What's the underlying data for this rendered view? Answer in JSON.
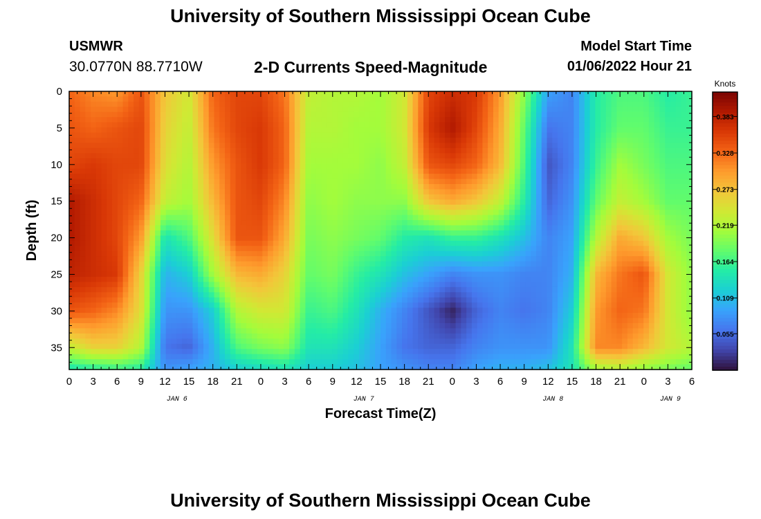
{
  "header": {
    "title": "University of Southern Mississippi Ocean Cube",
    "station": "USMWR",
    "coordinates": "30.0770N  88.7710W",
    "subtitle": "2-D Currents Speed-Magnitude",
    "start_label": "Model Start Time",
    "start_value": "01/06/2022 Hour 21"
  },
  "footer": {
    "title": "University of Southern Mississippi Ocean Cube"
  },
  "chart_data": {
    "type": "heatmap",
    "xlabel": "Forecast Time(Z)",
    "ylabel": "Depth (ft)",
    "x_tick_labels": [
      "0",
      "3",
      "6",
      "9",
      "12",
      "15",
      "18",
      "21",
      "0",
      "3",
      "6",
      "9",
      "12",
      "15",
      "18",
      "21",
      "0",
      "3",
      "6",
      "9",
      "12",
      "15",
      "18",
      "21",
      "0",
      "3",
      "6"
    ],
    "day_labels": [
      {
        "label": "JAN 6",
        "tick_index": 4.5
      },
      {
        "label": "JAN 7",
        "tick_index": 12.3
      },
      {
        "label": "JAN 8",
        "tick_index": 20.2
      },
      {
        "label": "JAN 9",
        "tick_index": 25.1
      }
    ],
    "x_range_hours": [
      0,
      78
    ],
    "y_tick_labels": [
      "0",
      "5",
      "10",
      "15",
      "20",
      "25",
      "30",
      "35"
    ],
    "y_range_ft": [
      0,
      38
    ],
    "colorbar": {
      "title": "Knots",
      "tick_labels": [
        "0.383",
        "0.328",
        "0.273",
        "0.219",
        "0.164",
        "0.109",
        "0.055"
      ],
      "range": [
        0,
        0.42
      ],
      "colors": [
        "#30123b",
        "#4145ab",
        "#4675ed",
        "#39a2fc",
        "#1bcfd4",
        "#24eca6",
        "#61fc6c",
        "#a4fc3b",
        "#d1e834",
        "#f3c63a",
        "#fe9b2d",
        "#f36315",
        "#d93806",
        "#b11901",
        "#7a0403"
      ]
    },
    "z_grid_depths_ft": [
      0,
      5,
      10,
      15,
      20,
      25,
      30,
      35,
      38
    ],
    "z_grid_hours": [
      0,
      3,
      6,
      9,
      12,
      15,
      18,
      21,
      24,
      27,
      30,
      33,
      36,
      39,
      42,
      45,
      48,
      51,
      54,
      57,
      60,
      63,
      66,
      69,
      72,
      75,
      78
    ],
    "z_speed_knots": [
      [
        0.33,
        0.31,
        0.3,
        0.34,
        0.27,
        0.24,
        0.33,
        0.35,
        0.35,
        0.32,
        0.23,
        0.22,
        0.22,
        0.21,
        0.24,
        0.35,
        0.37,
        0.36,
        0.3,
        0.2,
        0.09,
        0.07,
        0.15,
        0.17,
        0.17,
        0.15,
        0.16
      ],
      [
        0.34,
        0.33,
        0.34,
        0.35,
        0.26,
        0.23,
        0.32,
        0.35,
        0.36,
        0.33,
        0.22,
        0.22,
        0.21,
        0.21,
        0.24,
        0.36,
        0.39,
        0.35,
        0.29,
        0.18,
        0.06,
        0.07,
        0.15,
        0.18,
        0.18,
        0.16,
        0.16
      ],
      [
        0.35,
        0.36,
        0.35,
        0.35,
        0.25,
        0.22,
        0.3,
        0.34,
        0.36,
        0.33,
        0.21,
        0.21,
        0.21,
        0.2,
        0.23,
        0.34,
        0.35,
        0.33,
        0.28,
        0.17,
        0.04,
        0.07,
        0.16,
        0.21,
        0.19,
        0.17,
        0.17
      ],
      [
        0.39,
        0.37,
        0.35,
        0.33,
        0.23,
        0.21,
        0.28,
        0.34,
        0.35,
        0.31,
        0.2,
        0.21,
        0.2,
        0.2,
        0.2,
        0.27,
        0.29,
        0.27,
        0.23,
        0.15,
        0.05,
        0.08,
        0.18,
        0.23,
        0.21,
        0.18,
        0.18
      ],
      [
        0.39,
        0.37,
        0.35,
        0.3,
        0.14,
        0.17,
        0.25,
        0.34,
        0.34,
        0.29,
        0.19,
        0.2,
        0.19,
        0.18,
        0.15,
        0.14,
        0.16,
        0.16,
        0.14,
        0.11,
        0.07,
        0.09,
        0.22,
        0.29,
        0.27,
        0.21,
        0.19
      ],
      [
        0.38,
        0.37,
        0.36,
        0.26,
        0.1,
        0.12,
        0.21,
        0.28,
        0.29,
        0.26,
        0.18,
        0.19,
        0.16,
        0.14,
        0.11,
        0.09,
        0.07,
        0.08,
        0.08,
        0.07,
        0.07,
        0.1,
        0.28,
        0.32,
        0.34,
        0.24,
        0.2
      ],
      [
        0.34,
        0.33,
        0.31,
        0.25,
        0.08,
        0.08,
        0.12,
        0.22,
        0.24,
        0.24,
        0.16,
        0.17,
        0.14,
        0.1,
        0.07,
        0.04,
        0.01,
        0.05,
        0.07,
        0.06,
        0.07,
        0.12,
        0.3,
        0.33,
        0.32,
        0.24,
        0.2
      ],
      [
        0.23,
        0.26,
        0.26,
        0.22,
        0.06,
        0.05,
        0.1,
        0.17,
        0.19,
        0.2,
        0.14,
        0.14,
        0.12,
        0.09,
        0.06,
        0.05,
        0.05,
        0.07,
        0.08,
        0.08,
        0.08,
        0.14,
        0.31,
        0.31,
        0.28,
        0.24,
        0.22
      ],
      [
        0.14,
        0.15,
        0.16,
        0.15,
        0.08,
        0.09,
        0.1,
        0.12,
        0.13,
        0.14,
        0.12,
        0.12,
        0.11,
        0.09,
        0.08,
        0.07,
        0.07,
        0.09,
        0.1,
        0.1,
        0.11,
        0.14,
        0.21,
        0.22,
        0.2,
        0.19,
        0.18
      ]
    ]
  }
}
